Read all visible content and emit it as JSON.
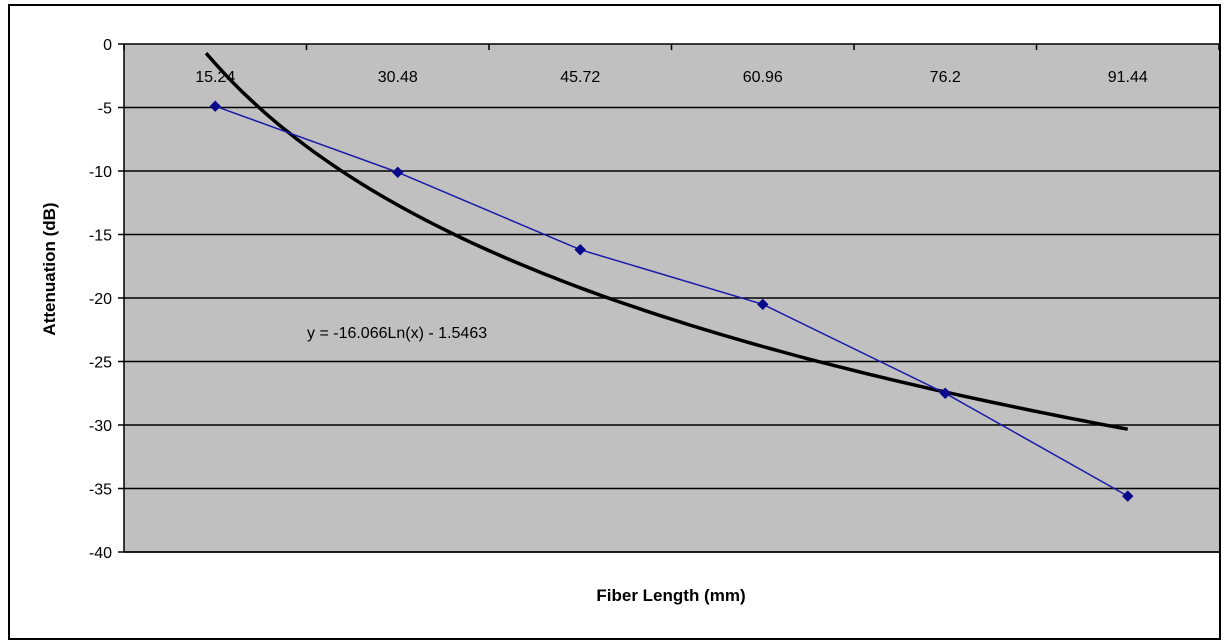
{
  "chart_data": {
    "type": "line",
    "title": "",
    "xlabel": "Fiber  Length (mm)",
    "ylabel": "Attenuation (dB)",
    "categories": [
      "15.24",
      "30.48",
      "45.72",
      "60.96",
      "76.2",
      "91.44"
    ],
    "ylim": [
      -40,
      0
    ],
    "yticks": [
      0,
      -5,
      -10,
      -15,
      -20,
      -25,
      -30,
      -35,
      -40
    ],
    "grid": "horizontal",
    "series": [
      {
        "values": [
          -4.9,
          -10.1,
          -16.2,
          -20.5,
          -27.5,
          -35.6
        ],
        "color": "#1a1aa8",
        "marker": "diamond"
      }
    ],
    "trendline": {
      "type": "logarithmic",
      "color": "#000000",
      "equation": "y = -16.066Ln(x) - 1.5463",
      "a": -16.066,
      "b": -1.5463
    },
    "plot_background": "#c0c0c0"
  }
}
